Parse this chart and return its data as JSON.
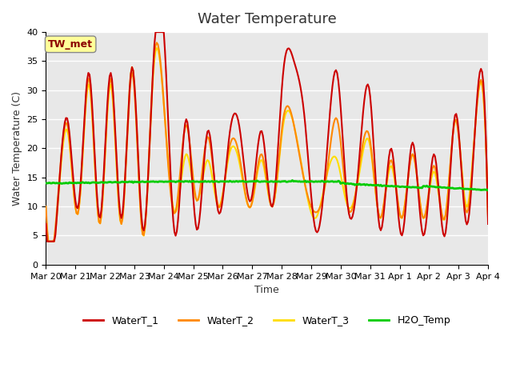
{
  "title": "Water Temperature",
  "xlabel": "Time",
  "ylabel": "Water Temperature (C)",
  "ylim": [
    0,
    40
  ],
  "xlim_start": 0,
  "xlim_end": 375,
  "xtick_labels": [
    "Mar 20",
    "Mar 21",
    "Mar 22",
    "Mar 23",
    "Mar 24",
    "Mar 25",
    "Mar 26",
    "Mar 27",
    "Mar 28",
    "Mar 29",
    "Mar 30",
    "Mar 31",
    "Apr 1",
    "Apr 2",
    "Apr 3",
    "Apr 4"
  ],
  "xtick_positions": [
    0,
    25,
    50,
    75,
    100,
    125,
    150,
    175,
    200,
    225,
    250,
    275,
    300,
    325,
    350,
    375
  ],
  "bg_color": "#e8e8e8",
  "line_colors": {
    "WaterT_1": "#cc0000",
    "WaterT_2": "#ff8800",
    "WaterT_3": "#ffdd00",
    "H2O_Temp": "#00cc00"
  },
  "line_widths": {
    "WaterT_1": 1.5,
    "WaterT_2": 1.5,
    "WaterT_3": 1.5,
    "H2O_Temp": 2.0
  },
  "annotation_text": "TW_met",
  "annotation_box_color": "#ffff99",
  "annotation_text_color": "#8b0000",
  "legend_labels": [
    "WaterT_1",
    "WaterT_2",
    "WaterT_3",
    "H2O_Temp"
  ],
  "ytick_positions": [
    0,
    5,
    10,
    15,
    20,
    25,
    30,
    35,
    40
  ],
  "grid_color": "#ffffff",
  "title_fontsize": 13,
  "axis_label_fontsize": 9,
  "tick_fontsize": 8
}
